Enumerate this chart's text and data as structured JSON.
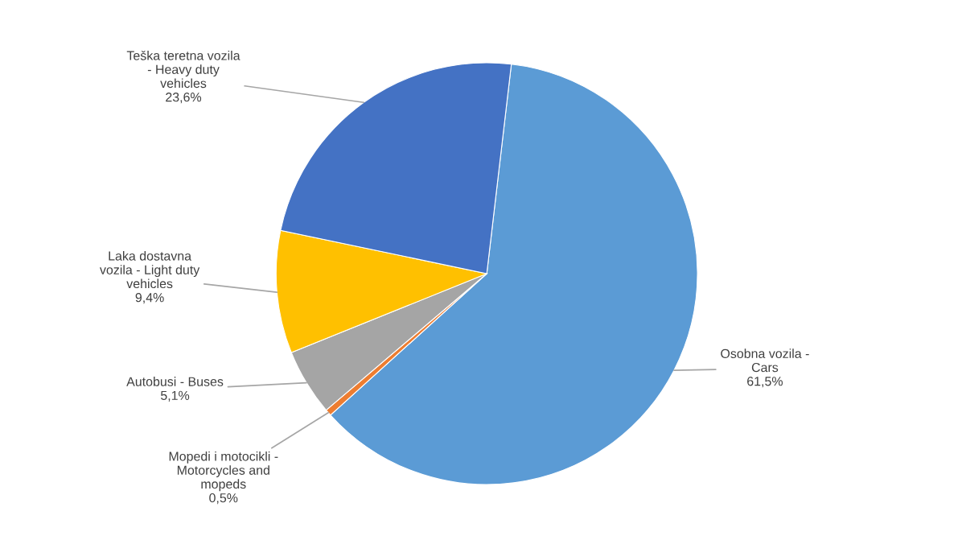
{
  "chart_data": {
    "type": "pie",
    "categories": [
      "Osobna vozila -\nCars",
      "Mopedi i motocikli -\nMotorcycles and\nmopeds",
      "Autobusi - Buses",
      "Laka dostavna\nvozila - Light duty\nvehicles",
      "Teška teretna vozila\n- Heavy duty\nvehicles"
    ],
    "values": [
      61.5,
      0.5,
      5.1,
      9.4,
      23.6
    ],
    "value_labels": [
      "61,5%",
      "0,5%",
      "5,1%",
      "9,4%",
      "23,6%"
    ],
    "colors": [
      "#5b9bd5",
      "#ed7d31",
      "#a5a5a5",
      "#ffc000",
      "#4472c4"
    ],
    "legend": false
  }
}
